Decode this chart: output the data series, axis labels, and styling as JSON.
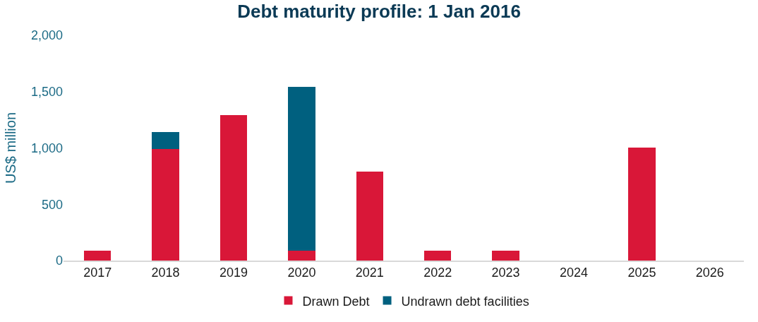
{
  "chart_data": {
    "type": "bar",
    "title": "Debt maturity profile: 1 Jan 2016",
    "ylabel": "US$ million",
    "categories": [
      "2017",
      "2018",
      "2019",
      "2020",
      "2021",
      "2022",
      "2023",
      "2024",
      "2025",
      "2026"
    ],
    "series": [
      {
        "name": "Drawn Debt",
        "color": "#d91738",
        "values": [
          85,
          990,
          1290,
          85,
          790,
          85,
          85,
          null,
          1005,
          null
        ]
      },
      {
        "name": "Undrawn debt facilities",
        "color": "#00607f",
        "values": [
          null,
          150,
          null,
          1455,
          null,
          null,
          null,
          null,
          null,
          null
        ]
      }
    ],
    "stacked": true,
    "ylim": [
      0,
      2000
    ],
    "yticks": [
      0,
      500,
      {
        "value": 1000,
        "label": "1,000"
      },
      {
        "value": 1500,
        "label": "1,500"
      },
      {
        "value": 2000,
        "label": "2,000"
      }
    ],
    "legend": "bottom"
  }
}
